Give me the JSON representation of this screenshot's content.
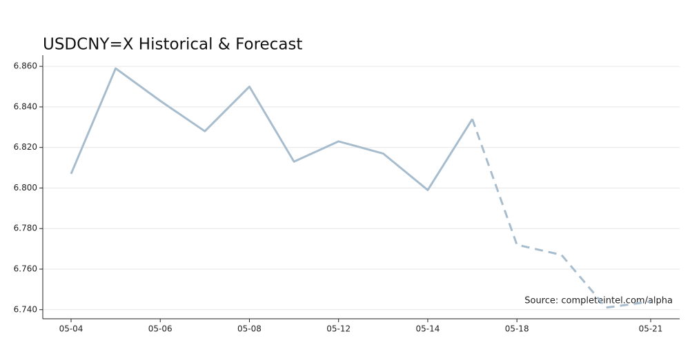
{
  "chart_data": {
    "type": "line",
    "title": "USDCNY=X Historical & Forecast",
    "annotation": "Source: completeintel.com/alpha",
    "categories": [
      "05-04",
      null,
      "05-06",
      null,
      "05-08",
      null,
      "05-12",
      null,
      "05-14",
      null,
      "05-18",
      null,
      null,
      "05-21"
    ],
    "series": [
      {
        "color": "#a7bccd",
        "dashed": false,
        "values": [
          6.807,
          6.859,
          6.843,
          6.828,
          6.85,
          6.813,
          6.823,
          6.817,
          6.799,
          6.834,
          null,
          null,
          null,
          null
        ]
      },
      {
        "color": "#a7bccd",
        "dashed": true,
        "values": [
          null,
          null,
          null,
          null,
          null,
          null,
          null,
          null,
          null,
          6.834,
          6.772,
          6.767,
          6.741,
          6.744
        ]
      }
    ],
    "ylim": [
      6.7355,
      6.8655
    ],
    "yticks": [
      {
        "value": 6.74,
        "label": "6.740"
      },
      {
        "value": 6.76,
        "label": "6.760"
      },
      {
        "value": 6.78,
        "label": "6.780"
      },
      {
        "value": 6.8,
        "label": "6.800"
      },
      {
        "value": 6.82,
        "label": "6.820"
      },
      {
        "value": 6.84,
        "label": "6.840"
      },
      {
        "value": 6.86,
        "label": "6.860"
      }
    ],
    "grid": true
  }
}
